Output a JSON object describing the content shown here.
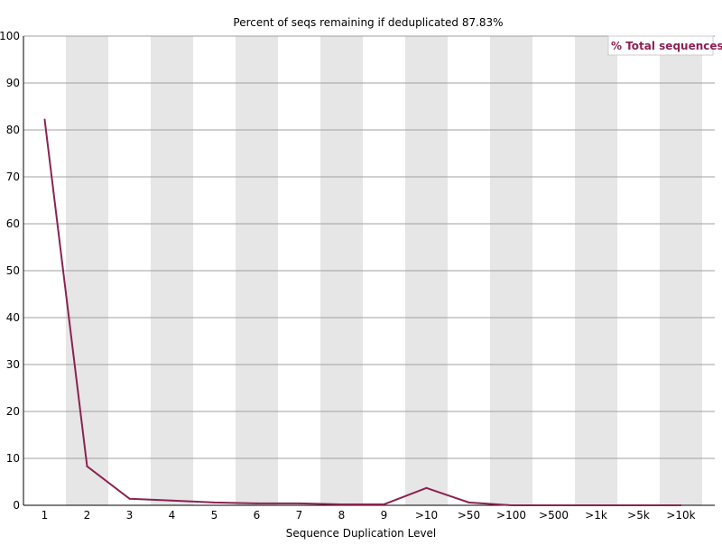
{
  "chart_data": {
    "type": "line",
    "title": "Percent of seqs remaining if deduplicated 87.83%",
    "xlabel": "Sequence Duplication Level",
    "ylabel": "",
    "categories": [
      "1",
      "2",
      "3",
      "4",
      "5",
      "6",
      "7",
      "8",
      "9",
      ">10",
      ">50",
      ">100",
      ">500",
      ">1k",
      ">5k",
      ">10k"
    ],
    "ylim": [
      0,
      100
    ],
    "yticks": [
      0,
      10,
      20,
      30,
      40,
      50,
      60,
      70,
      80,
      90,
      100
    ],
    "grid": true,
    "legend_position": "top-right",
    "series": [
      {
        "name": "% Total sequences",
        "color": "#8b2252",
        "values": [
          82.2,
          8.3,
          1.4,
          1.0,
          0.6,
          0.4,
          0.4,
          0.2,
          0.2,
          3.7,
          0.6,
          0.0,
          0.0,
          0.0,
          0.0,
          0.0
        ]
      }
    ],
    "band_color": "#e6e6e6",
    "grid_color": "#a0a0a0",
    "axis_color": "#000000"
  }
}
